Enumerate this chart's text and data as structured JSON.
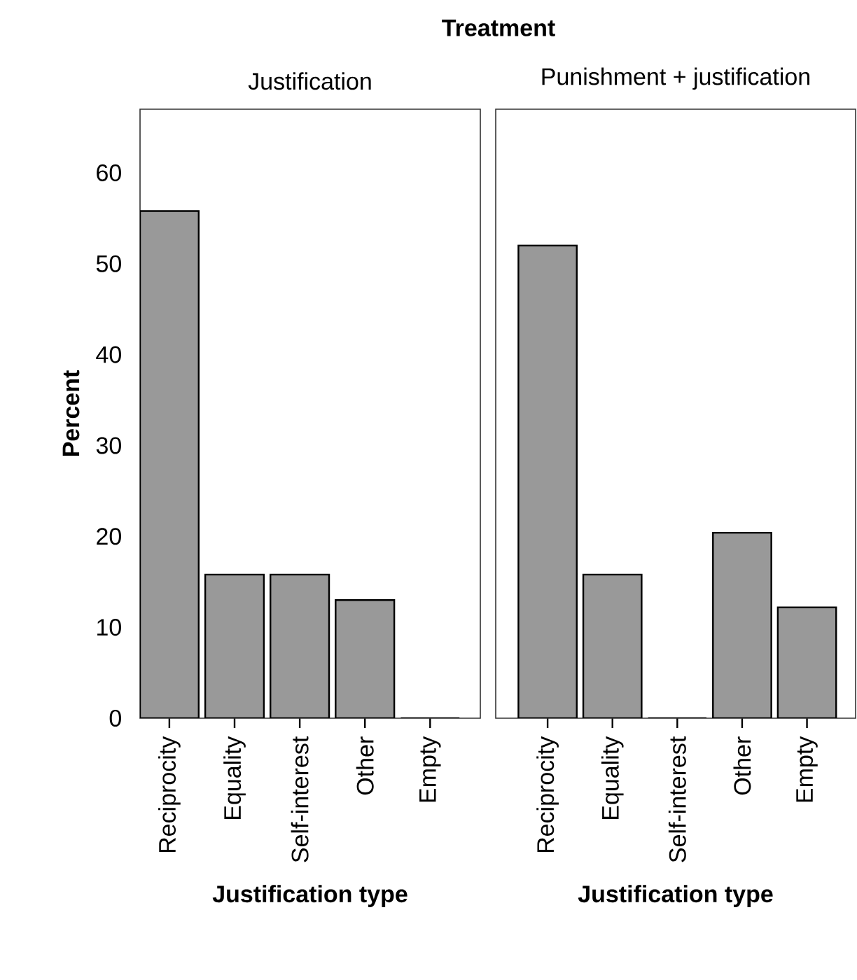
{
  "chart_data": [
    {
      "type": "bar",
      "title": "Justification",
      "annotations": [
        "Treatment"
      ],
      "xlabel": "Justification type",
      "ylabel": "Percent",
      "categories": [
        "Reciprocity",
        "Equality",
        "Self-interest",
        "Other",
        "Empty"
      ],
      "values": [
        55.8,
        15.8,
        15.8,
        13.0,
        0
      ],
      "color": "#999999",
      "ylim": [
        0,
        67
      ],
      "yticks": [
        0,
        10,
        20,
        30,
        40,
        50,
        60
      ],
      "grid": false
    },
    {
      "type": "bar",
      "title": "Punishment + justification",
      "xlabel": "Justification type",
      "categories": [
        "Reciprocity",
        "Equality",
        "Self-interest",
        "Other",
        "Empty"
      ],
      "values": [
        52.0,
        15.8,
        0,
        20.4,
        12.2
      ],
      "color": "#999999",
      "ylim": [
        0,
        67
      ],
      "yticks": [
        0,
        10,
        20,
        30,
        40,
        50,
        60
      ],
      "grid": false,
      "tick_labels": "x"
    }
  ]
}
